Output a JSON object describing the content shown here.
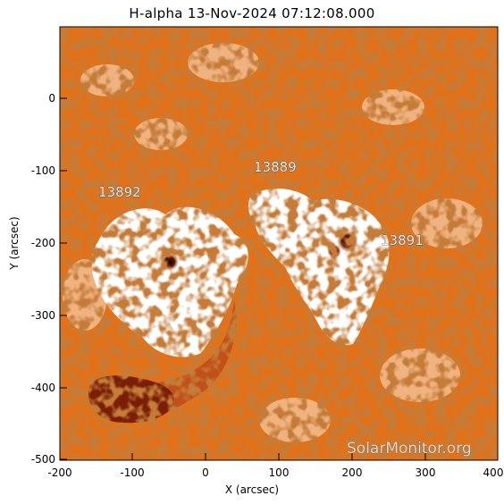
{
  "title": "H-alpha 13-Nov-2024 07:12:08.000",
  "x_axis": {
    "label": "X (arcsec)",
    "ticks": [
      "-200",
      "-100",
      "0",
      "100",
      "200",
      "300",
      "400"
    ]
  },
  "y_axis": {
    "label": "Y (arcsec)",
    "ticks": [
      "0",
      "-100",
      "-200",
      "-300",
      "-400",
      "-500"
    ]
  },
  "regions": [
    {
      "id": "13892",
      "label": "13892"
    },
    {
      "id": "13889",
      "label": "13889"
    },
    {
      "id": "13891",
      "label": "13891"
    }
  ],
  "watermark": "SolarMonitor.org",
  "colors": {
    "chromosphere": "#e2721a",
    "bright": "#ffffff",
    "dark": "#7a1e05",
    "speckle": "#2a0a00"
  }
}
